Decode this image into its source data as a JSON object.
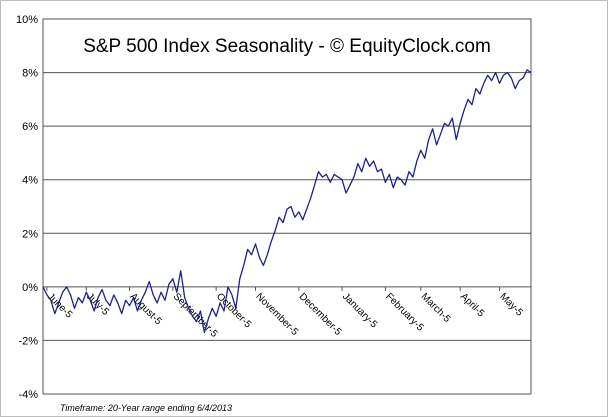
{
  "chart_data": {
    "type": "line",
    "title": "S&P 500 Index Seasonality - © EquityClock.com",
    "footnote": "Timeframe: 20-Year range ending 6/4/2013",
    "categories": [
      null,
      "June-5",
      null,
      null,
      null,
      null,
      null,
      null,
      null,
      null,
      null,
      "July-5",
      null,
      null,
      null,
      null,
      null,
      null,
      null,
      null,
      null,
      null,
      "August-5",
      null,
      null,
      null,
      null,
      null,
      null,
      null,
      null,
      null,
      null,
      "September-5",
      null,
      null,
      null,
      null,
      null,
      null,
      null,
      null,
      null,
      null,
      "October-5",
      null,
      null,
      null,
      null,
      null,
      null,
      null,
      null,
      null,
      "November-5",
      null,
      null,
      null,
      null,
      null,
      null,
      null,
      null,
      null,
      null,
      "December-5",
      null,
      null,
      null,
      null,
      null,
      null,
      null,
      null,
      null,
      null,
      "January-5",
      null,
      null,
      null,
      null,
      null,
      null,
      null,
      null,
      null,
      null,
      "February-5",
      null,
      null,
      null,
      null,
      null,
      null,
      null,
      null,
      "March-5",
      null,
      null,
      null,
      null,
      null,
      null,
      null,
      null,
      null,
      "April-5",
      null,
      null,
      null,
      null,
      null,
      null,
      null,
      null,
      null,
      "May-5",
      null,
      null,
      null,
      null,
      null,
      null,
      null,
      null
    ],
    "values": [
      0,
      -0.3,
      -0.5,
      -1.0,
      -0.6,
      -0.2,
      0.0,
      -0.3,
      -0.8,
      -0.4,
      -0.6,
      -0.2,
      -0.5,
      -0.9,
      -0.4,
      -0.1,
      -0.5,
      -0.7,
      -0.3,
      -0.6,
      -1.0,
      -0.5,
      -0.7,
      -0.4,
      -0.9,
      -0.5,
      -0.2,
      0.2,
      -0.3,
      -0.6,
      -0.2,
      -0.5,
      0.1,
      0.3,
      -0.2,
      0.6,
      -0.4,
      -0.8,
      -1.1,
      -1.3,
      -0.9,
      -1.7,
      -1.2,
      -0.8,
      -1.1,
      -0.6,
      -0.9,
      0.0,
      -0.3,
      -0.8,
      0.3,
      0.8,
      1.4,
      1.2,
      1.6,
      1.1,
      0.8,
      1.2,
      1.7,
      2.1,
      2.6,
      2.4,
      2.9,
      3.0,
      2.6,
      2.8,
      2.5,
      2.9,
      3.3,
      3.8,
      4.3,
      4.1,
      4.2,
      3.9,
      4.2,
      4.1,
      4.0,
      3.5,
      3.8,
      4.1,
      4.6,
      4.3,
      4.8,
      4.5,
      4.7,
      4.3,
      4.4,
      3.9,
      4.2,
      3.7,
      4.1,
      4.0,
      3.8,
      4.3,
      4.1,
      4.7,
      5.1,
      4.8,
      5.5,
      5.9,
      5.3,
      5.7,
      6.1,
      6.0,
      6.3,
      5.5,
      6.1,
      6.6,
      7.0,
      6.8,
      7.4,
      7.2,
      7.6,
      7.9,
      7.7,
      8.0,
      7.6,
      7.9,
      8.0,
      7.8,
      7.4,
      7.7,
      7.8,
      8.1,
      8.0
    ],
    "color": "#1f1f8f",
    "ylim": [
      -4,
      10
    ],
    "yticks": [
      {
        "value": -4,
        "label": "-4%"
      },
      {
        "value": -2,
        "label": "-2%"
      },
      {
        "value": 0,
        "label": "0%"
      },
      {
        "value": 2,
        "label": "2%"
      },
      {
        "value": 4,
        "label": "4%"
      },
      {
        "value": 6,
        "label": "6%"
      },
      {
        "value": 8,
        "label": "8%"
      },
      {
        "value": 10,
        "label": "10%"
      }
    ],
    "grid": true
  }
}
